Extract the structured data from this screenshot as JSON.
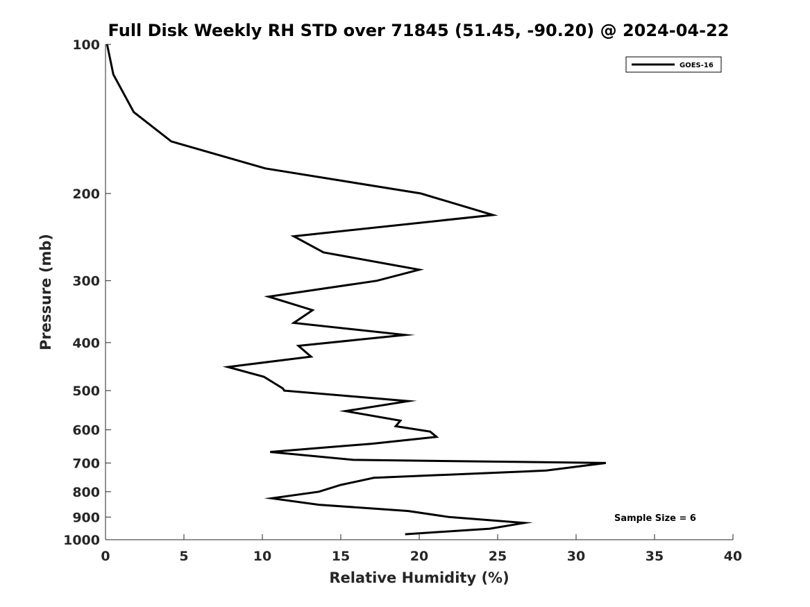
{
  "chart_data": {
    "type": "line",
    "title": "Full Disk Weekly RH STD over 71845 (51.45, -90.20) @ 2024-04-22",
    "xlabel": "Relative Humidity (%)",
    "ylabel": "Pressure (mb)",
    "xlim": [
      0,
      40
    ],
    "ylim": [
      100,
      1000
    ],
    "y_scale": "log",
    "y_reversed": true,
    "x_ticks": [
      0,
      5,
      10,
      15,
      20,
      25,
      30,
      35,
      40
    ],
    "x_tick_labels": [
      "0",
      "5",
      "10",
      "15",
      "20",
      "25",
      "30",
      "35",
      "40"
    ],
    "y_ticks": [
      100,
      200,
      300,
      400,
      500,
      600,
      700,
      800,
      900,
      1000
    ],
    "y_tick_labels": [
      "100",
      "200",
      "300",
      "400",
      "500",
      "600",
      "700",
      "800",
      "900",
      "1000"
    ],
    "grid": false,
    "legend_position": "top-right",
    "series": [
      {
        "name": "GOES-16",
        "color": "#000000",
        "x": [
          0.1,
          0.5,
          1.8,
          4.2,
          10.2,
          20.1,
          24.7,
          12.0,
          13.9,
          20.0,
          17.3,
          10.4,
          13.2,
          12.0,
          19.1,
          12.3,
          13.1,
          7.8,
          10.1,
          11.3,
          11.4,
          19.3,
          15.3,
          18.8,
          18.5,
          20.7,
          21.1,
          17.0,
          10.5,
          15.8,
          31.9,
          28.1,
          17.1,
          15.0,
          13.6,
          10.6,
          13.6,
          19.3,
          21.9,
          26.7,
          24.5,
          19.1
        ],
        "y": [
          100,
          115,
          137,
          157,
          178,
          200,
          221,
          244,
          263,
          285,
          300,
          323,
          344,
          365,
          386,
          406,
          427,
          448,
          469,
          495,
          500,
          525,
          550,
          575,
          590,
          605,
          620,
          640,
          665,
          690,
          700,
          725,
          750,
          775,
          800,
          825,
          850,
          875,
          900,
          925,
          950,
          975
        ]
      }
    ],
    "annotations": [
      "Sample Size = 6"
    ]
  }
}
